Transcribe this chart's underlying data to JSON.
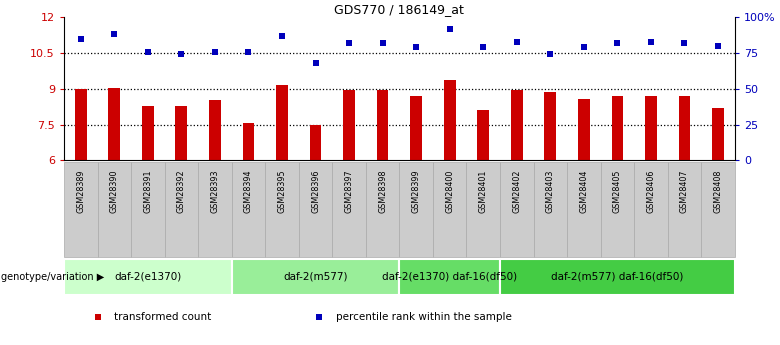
{
  "title": "GDS770 / 186149_at",
  "samples": [
    "GSM28389",
    "GSM28390",
    "GSM28391",
    "GSM28392",
    "GSM28393",
    "GSM28394",
    "GSM28395",
    "GSM28396",
    "GSM28397",
    "GSM28398",
    "GSM28399",
    "GSM28400",
    "GSM28401",
    "GSM28402",
    "GSM28403",
    "GSM28404",
    "GSM28405",
    "GSM28406",
    "GSM28407",
    "GSM28408"
  ],
  "transformed_count": [
    9.0,
    9.05,
    8.28,
    8.28,
    8.55,
    7.58,
    9.15,
    7.5,
    8.95,
    8.95,
    8.7,
    9.38,
    8.1,
    8.95,
    8.85,
    8.58,
    8.7,
    8.7,
    8.7,
    8.2
  ],
  "percentile_rank": [
    85,
    88,
    76,
    74,
    76,
    76,
    87,
    68,
    82,
    82,
    79,
    92,
    79,
    83,
    74,
    79,
    82,
    83,
    82,
    80
  ],
  "ylim_left": [
    6,
    12
  ],
  "ylim_right": [
    0,
    100
  ],
  "yticks_left": [
    6,
    7.5,
    9,
    10.5,
    12
  ],
  "yticks_right": [
    0,
    25,
    50,
    75,
    100
  ],
  "bar_color": "#cc0000",
  "dot_color": "#0000bb",
  "hlines": [
    10.5,
    9.0,
    7.5
  ],
  "groups": [
    {
      "label": "daf-2(e1370)",
      "start": 0,
      "end": 5,
      "color": "#ccffcc"
    },
    {
      "label": "daf-2(m577)",
      "start": 5,
      "end": 10,
      "color": "#99ee99"
    },
    {
      "label": "daf-2(e1370) daf-16(df50)",
      "start": 10,
      "end": 13,
      "color": "#66dd66"
    },
    {
      "label": "daf-2(m577) daf-16(df50)",
      "start": 13,
      "end": 20,
      "color": "#44cc44"
    }
  ],
  "genotype_label": "genotype/variation",
  "legend_items": [
    {
      "label": "transformed count",
      "color": "#cc0000"
    },
    {
      "label": "percentile rank within the sample",
      "color": "#0000bb"
    }
  ],
  "label_bg": "#cccccc"
}
